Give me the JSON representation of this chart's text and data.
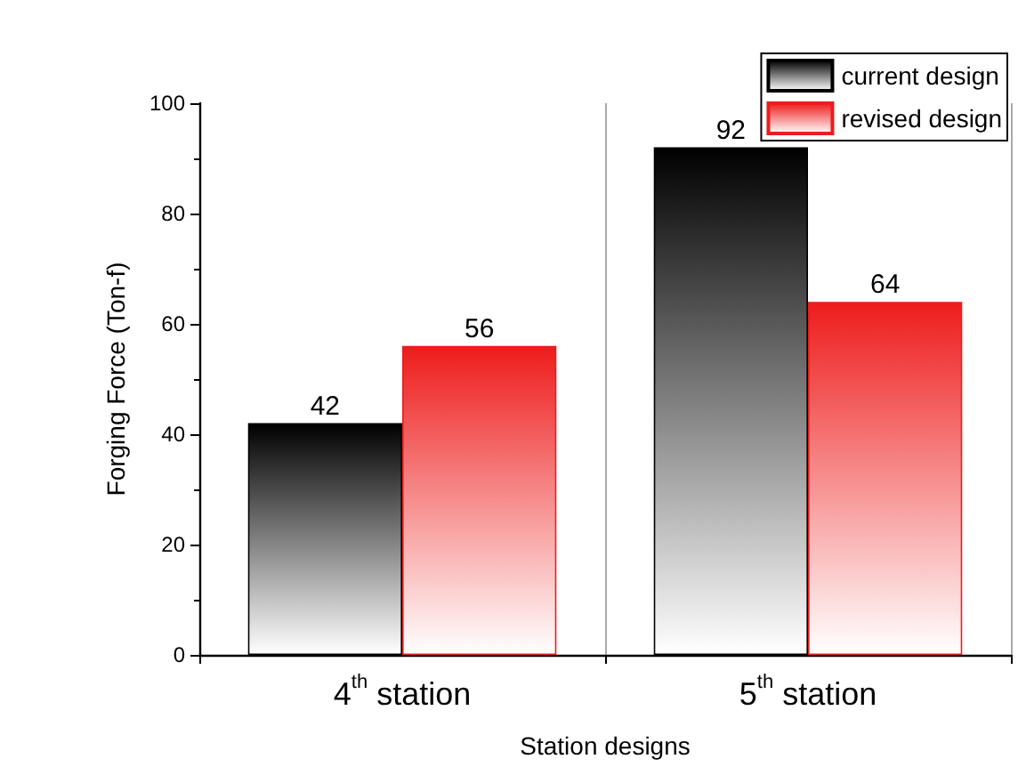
{
  "chart_data": {
    "type": "bar",
    "xlabel": "Station designs",
    "ylabel": "Forging Force (Ton-f)",
    "categories": [
      "4$^{th}$ station",
      "5$^{th}$ station"
    ],
    "series": [
      {
        "name": "current design",
        "color": "#000000",
        "values": [
          42,
          92
        ]
      },
      {
        "name": "revised design",
        "color": "#ee1c1c",
        "values": [
          56,
          64
        ]
      }
    ],
    "ylim": [
      0,
      100
    ],
    "yticks": [
      0,
      20,
      40,
      60,
      80,
      100
    ],
    "grid": "x",
    "legend": "top right",
    "data_labels": true
  }
}
